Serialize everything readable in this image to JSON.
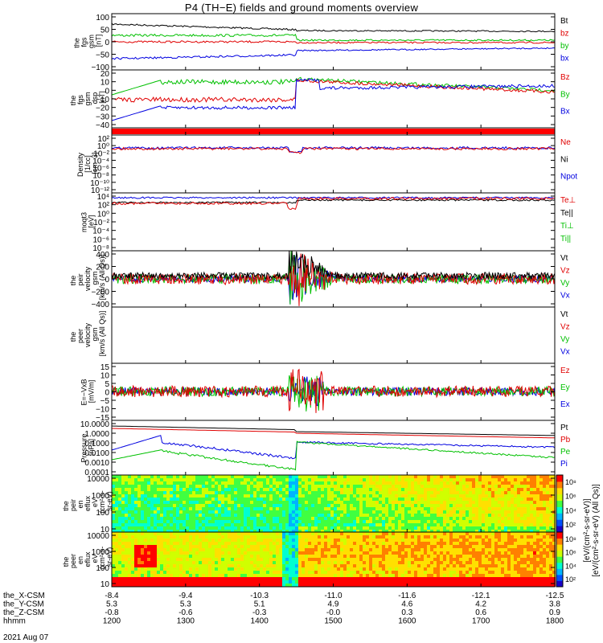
{
  "title": "P4 (TH−E) fields and ground moments overview",
  "chart_data": {
    "type": "line",
    "x_range": [
      1200,
      1800
    ],
    "x_tick_hhmm": [
      "1200",
      "1300",
      "1400",
      "1500",
      "1600",
      "1700",
      "1800"
    ],
    "x_rows": [
      {
        "label": "the_X-CSM",
        "values": [
          "-8.4",
          "-9.4",
          "-10.3",
          "-11.0",
          "-11.6",
          "-12.1",
          "-12.5"
        ]
      },
      {
        "label": "the_Y-CSM",
        "values": [
          "5.3",
          "5.3",
          "5.1",
          "4.9",
          "4.6",
          "4.2",
          "3.8"
        ]
      },
      {
        "label": "the_Z-CSM",
        "values": [
          "-0.8",
          "-0.6",
          "-0.3",
          "-0.0",
          "0.3",
          "0.6",
          "0.9"
        ]
      },
      {
        "label": "hhmm",
        "values": [
          "1200",
          "1300",
          "1400",
          "1500",
          "1600",
          "1700",
          "1800"
        ]
      }
    ],
    "date": "2021 Aug 07",
    "panels": [
      {
        "ylabel": [
          "the",
          "fgs",
          "gsm",
          "[nT]"
        ],
        "ticks": [
          "100",
          "50",
          "0",
          "−50",
          "−100"
        ],
        "legend": [
          [
            "Bt",
            "#000"
          ],
          [
            "bz",
            "#e00000"
          ],
          [
            "by",
            "#00c000"
          ],
          [
            "bx",
            "#0000e0"
          ]
        ]
      },
      {
        "ylabel": [
          "the",
          "fgs",
          "gsm",
          "dsp",
          "[nT]"
        ],
        "ticks": [
          "20",
          "10",
          "0",
          "−10",
          "−20",
          "−30",
          "−40"
        ],
        "legend": [
          [
            "Bz",
            "#e00000"
          ],
          [
            "By",
            "#00c000"
          ],
          [
            "Bx",
            "#0000e0"
          ]
        ]
      },
      {
        "ylabel": [
          "Density",
          "[1/cc]",
          "[cm−3]"
        ],
        "ticks": [
          "10²",
          "10⁰",
          "10⁻²",
          "10⁻⁴",
          "10⁻⁶",
          "10⁻⁸",
          "10⁻¹⁰",
          "10⁻¹²"
        ],
        "legend": [
          [
            "Ne",
            "#e00000"
          ],
          [
            "Ni",
            "#000"
          ],
          [
            "Npot",
            "#0000e0"
          ]
        ]
      },
      {
        "ylabel": [
          "moqt3",
          "[eV]"
        ],
        "ticks": [
          "10⁴",
          "10²",
          "10⁰",
          "10⁻²",
          "10⁻⁴",
          "10⁻⁶",
          "10⁻⁸"
        ],
        "legend": [
          [
            "Te⊥",
            "#e00000"
          ],
          [
            "Te||",
            "#000"
          ],
          [
            "Ti⊥",
            "#00c000"
          ],
          [
            "Ti||",
            "#00c000"
          ]
        ]
      },
      {
        "ylabel": [
          "the",
          "peir",
          "velocity",
          "gsm",
          "[km/s (All Qs)]"
        ],
        "ticks": [
          "400",
          "200",
          "0",
          "−200",
          "−400"
        ],
        "legend": [
          [
            "Vt",
            "#000"
          ],
          [
            "Vz",
            "#e00000"
          ],
          [
            "Vy",
            "#00c000"
          ],
          [
            "Vx",
            "#0000e0"
          ]
        ]
      },
      {
        "ylabel": [
          "the",
          "peer",
          "velocity",
          "gsm",
          "[km/s (All Qs)]"
        ],
        "ticks": [],
        "legend": [
          [
            "Vt",
            "#000"
          ],
          [
            "Vz",
            "#e00000"
          ],
          [
            "Vy",
            "#00c000"
          ],
          [
            "Vx",
            "#0000e0"
          ]
        ]
      },
      {
        "ylabel": [
          "E=−VxB",
          "[mV/m]"
        ],
        "ticks": [
          "15",
          "10",
          "5",
          "0",
          "−5",
          "−10",
          "−15"
        ],
        "legend": [
          [
            "Ez",
            "#e00000"
          ],
          [
            "Ey",
            "#00c000"
          ],
          [
            "Ex",
            "#0000e0"
          ]
        ]
      },
      {
        "ylabel": [
          "Pressure",
          "[nPa]"
        ],
        "ticks": [
          "10.0000",
          "1.0000",
          "0.1000",
          "0.0100",
          "0.0010",
          "0.0001"
        ],
        "legend": [
          [
            "Pt",
            "#000"
          ],
          [
            "Pb",
            "#e00000"
          ],
          [
            "Pe",
            "#00c000"
          ],
          [
            "Pi",
            "#0000e0"
          ]
        ]
      },
      {
        "ylabel": [
          "the",
          "peir",
          "en",
          "eflux",
          "eV",
          "(cm²-s-",
          "sr-eV)"
        ],
        "ticks": [
          "10000",
          "1000",
          "100",
          "10"
        ],
        "legend": []
      },
      {
        "ylabel": [
          "the",
          "peer",
          "en",
          "eflux",
          "eV",
          "(cm²-s-",
          "sr-eV)"
        ],
        "ticks": [
          "10000",
          "1000",
          "100",
          "10"
        ],
        "legend": []
      }
    ],
    "colorbars": [
      {
        "ticks": [
          "10⁸",
          "10⁶",
          "10⁴",
          "10²"
        ],
        "label": "[eV/(cm²-s-sr-eV) (All Qs)]"
      },
      {
        "ticks": [
          "10⁸",
          "10⁶",
          "10⁴",
          "10²"
        ],
        "label": "[eV/(cm²-s-sr-eV)]"
      }
    ]
  }
}
